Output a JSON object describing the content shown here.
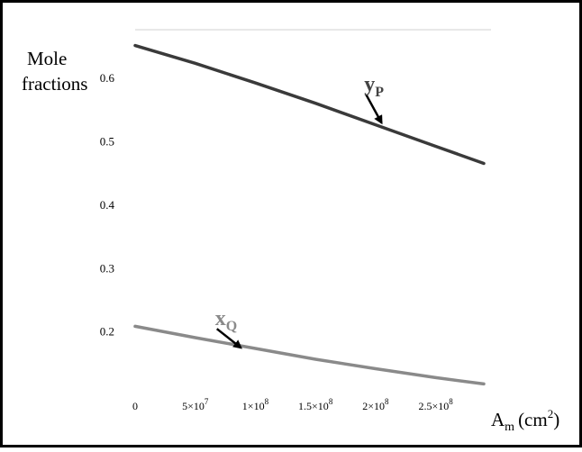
{
  "chart_data": {
    "type": "line",
    "ylabel_line1": "Mole",
    "ylabel_line2": "fractions",
    "xlabel_main": "A",
    "xlabel_sub": "m",
    "xlabel_unit": "(cm",
    "xlabel_exp": "2",
    "xlabel_close": ")",
    "xlim": [
      0,
      290000000
    ],
    "ylim": [
      0.12,
      0.66
    ],
    "x_ticks": [
      {
        "value": 0,
        "mant": "0",
        "exp": ""
      },
      {
        "value": 50000000,
        "mant": "5×10",
        "exp": "7"
      },
      {
        "value": 100000000,
        "mant": "1×10",
        "exp": "8"
      },
      {
        "value": 150000000,
        "mant": "1.5×10",
        "exp": "8"
      },
      {
        "value": 200000000,
        "mant": "2×10",
        "exp": "8"
      },
      {
        "value": 250000000,
        "mant": "2.5×10",
        "exp": "8"
      }
    ],
    "y_ticks": [
      {
        "value": 0.2,
        "label": "0.2"
      },
      {
        "value": 0.3,
        "label": "0.3"
      },
      {
        "value": 0.4,
        "label": "0.4"
      },
      {
        "value": 0.5,
        "label": "0.5"
      },
      {
        "value": 0.6,
        "label": "0.6"
      }
    ],
    "series": [
      {
        "name": "yP",
        "color": "#3a3a3a",
        "x": [
          0,
          50000000,
          100000000,
          150000000,
          200000000,
          250000000,
          290000000
        ],
        "y": [
          0.652,
          0.624,
          0.593,
          0.561,
          0.527,
          0.493,
          0.466
        ]
      },
      {
        "name": "xQ",
        "color": "#8a8a8a",
        "x": [
          0,
          50000000,
          100000000,
          150000000,
          200000000,
          250000000,
          290000000
        ],
        "y": [
          0.209,
          0.191,
          0.174,
          0.157,
          0.142,
          0.128,
          0.118
        ]
      }
    ],
    "annotations": [
      {
        "main": "y",
        "sub": "P",
        "color": "#444444",
        "arrow_from": [
          192000000,
          0.575
        ],
        "arrow_to": [
          205000000,
          0.53
        ]
      },
      {
        "main": "x",
        "sub": "Q",
        "color": "#8a8a8a",
        "arrow_from": [
          68000000,
          0.205
        ],
        "arrow_to": [
          88000000,
          0.175
        ]
      }
    ]
  }
}
